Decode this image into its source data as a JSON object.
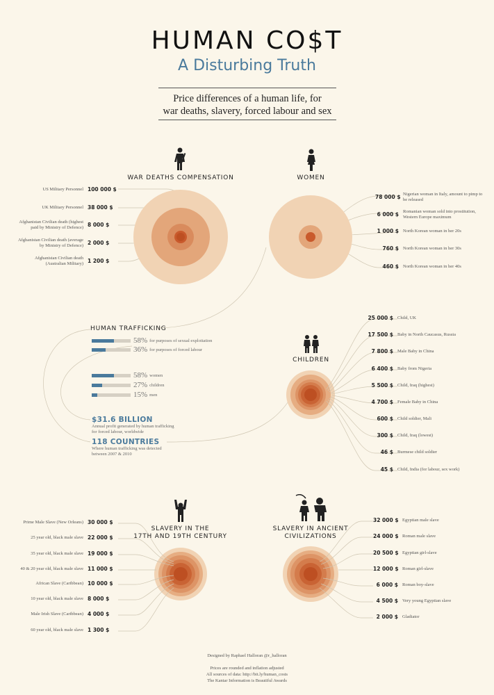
{
  "header": {
    "title": "HUMAN CO$T",
    "subtitle": "A Disturbing Truth",
    "lead_line1": "Price differences of a human life, for",
    "lead_line2": "war deaths, slavery, forced labour and sex"
  },
  "colors": {
    "accent": "#4a7a9c",
    "background": "#fbf6ea",
    "circle_outer": "#f0d4b6",
    "circle_mid": "#e2a67a",
    "circle_core": "#c2582c"
  },
  "war": {
    "title": "WAR DEATHS COMPENSATION",
    "icon": "soldier-icon",
    "rows": [
      {
        "label": "US Military Personnel",
        "value": "100 000 $"
      },
      {
        "label": "UK Military Personnel",
        "value": "38 000 $"
      },
      {
        "label": "Afghanistan Civilian death (highest paid by Ministry of Defence)",
        "value": "8 000 $"
      },
      {
        "label": "Afghanistan Civilian death (average by Ministry of Defence)",
        "value": "2 000 $"
      },
      {
        "label": "Afghanistan Civilian death (Australian Military)",
        "value": "1 200 $"
      }
    ]
  },
  "women": {
    "title": "WOMEN",
    "icon": "woman-icon",
    "rows": [
      {
        "label": "Nigerian woman in Italy, amount to pimp to be released",
        "value": "78 000 $"
      },
      {
        "label": "Romanian woman sold into prostitution, Western Europe maximum",
        "value": "6 000 $"
      },
      {
        "label": "North Korean woman in her 20s",
        "value": "1 000 $"
      },
      {
        "label": "North Korean woman in her 30s",
        "value": "760 $"
      },
      {
        "label": "North Korean woman in her 40s",
        "value": "460 $"
      }
    ]
  },
  "trafficking": {
    "title": "HUMAN TRAFFICKING",
    "purposes": [
      {
        "pct": "58%",
        "label": "for purposes of sexual exploitation",
        "value": 0.58
      },
      {
        "pct": "36%",
        "label": "for purposes of forced labour",
        "value": 0.36
      }
    ],
    "groups": [
      {
        "pct": "58%",
        "label": "women",
        "value": 0.58
      },
      {
        "pct": "27%",
        "label": "children",
        "value": 0.27
      },
      {
        "pct": "15%",
        "label": "men",
        "value": 0.15
      }
    ],
    "profit": "$31.6 BILLION",
    "profit_note1": "Annual profit generated by human trafficking",
    "profit_note2": "for forced labour, worldwide",
    "countries": "118 COUNTRIES",
    "countries_note1": "Where human trafficking was detected",
    "countries_note2": "between 2007 & 2010"
  },
  "children": {
    "title": "CHILDREN",
    "icon": "children-icon",
    "rows": [
      {
        "label": "Child, UK",
        "value": "25 000 $"
      },
      {
        "label": "Baby in North Caucasus, Russia",
        "value": "17 500 $"
      },
      {
        "label": "Male Baby in China",
        "value": "7 800 $"
      },
      {
        "label": "Baby from Nigeria",
        "value": "6 400 $"
      },
      {
        "label": "Child, Iraq (highest)",
        "value": "5 500 $"
      },
      {
        "label": "Female Baby in China",
        "value": "4 700 $"
      },
      {
        "label": "Child soldier, Mali",
        "value": "600 $"
      },
      {
        "label": "Child, Iraq (lowest)",
        "value": "300 $"
      },
      {
        "label": "Burmese child soldier",
        "value": "46 $"
      },
      {
        "label": "Child, India (for labour, sex work)",
        "value": "45 $"
      }
    ]
  },
  "slavery": {
    "title1": "SLAVERY IN THE",
    "title2": "17TH AND 19TH CENTURY",
    "icon": "chained-slave-icon",
    "rows": [
      {
        "label": "Prime Male Slave (New Orleans)",
        "value": "30 000 $"
      },
      {
        "label": "25 year old, black male slave",
        "value": "22 000 $"
      },
      {
        "label": "35 year old, black male slave",
        "value": "19 000 $"
      },
      {
        "label": "40 & 20 year old, black male slave",
        "value": "11 000 $"
      },
      {
        "label": "African Slave (Caribbean)",
        "value": "10 000 $"
      },
      {
        "label": "10 year old, black male slave",
        "value": "8 000 $"
      },
      {
        "label": "Male Irish Slave (Caribbean)",
        "value": "4 000 $"
      },
      {
        "label": "60 year old, black male slave",
        "value": "1 300 $"
      }
    ]
  },
  "ancient": {
    "title1": "SLAVERY IN ANCIENT",
    "title2": "CIVILIZATIONS",
    "icon": "gladiator-icon",
    "rows": [
      {
        "label": "Egyptian male slave",
        "value": "32 000 $"
      },
      {
        "label": "Roman male slave",
        "value": "24 000 $"
      },
      {
        "label": "Egyptian girl-slave",
        "value": "20 500 $"
      },
      {
        "label": "Roman girl-slave",
        "value": "12 000 $"
      },
      {
        "label": "Roman boy-slave",
        "value": "6 000 $"
      },
      {
        "label": "Very young Egyptian slave",
        "value": "4 500 $"
      },
      {
        "label": "Gladiator",
        "value": "2 000 $"
      }
    ]
  },
  "footer": {
    "credit": "Designed by Raphael Halloran @r_halloran",
    "note1": "Prices are rounded and inflation adjusted",
    "note2": "All sources of data: http://bit.ly/human_costs",
    "note3": "The Kantar Information is Beautiful Awards"
  }
}
